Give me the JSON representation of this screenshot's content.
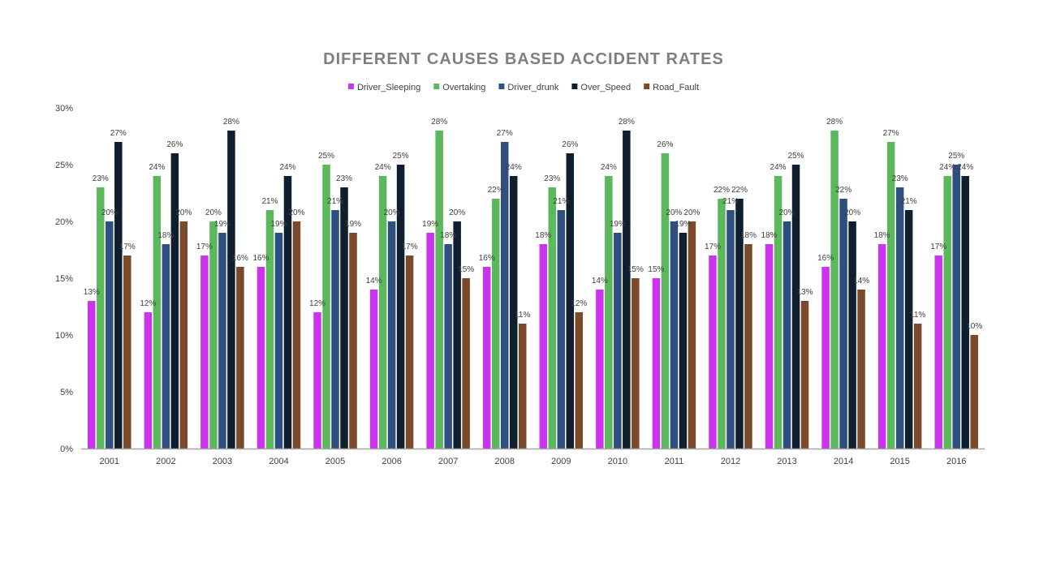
{
  "chart_data": {
    "type": "bar",
    "title": "DIFFERENT CAUSES BASED ACCIDENT RATES",
    "xlabel": "",
    "ylabel": "",
    "ylim": [
      0,
      30
    ],
    "ytick_step": 5,
    "ytick_suffix": "%",
    "data_label_suffix": "%",
    "grid": false,
    "legend_position": "top",
    "categories": [
      "2001",
      "2002",
      "2003",
      "2004",
      "2005",
      "2006",
      "2007",
      "2008",
      "2009",
      "2010",
      "2011",
      "2012",
      "2013",
      "2014",
      "2015",
      "2016"
    ],
    "series": [
      {
        "name": "Driver_Sleeping",
        "color": "#cc33ee",
        "values": [
          13,
          12,
          17,
          16,
          12,
          14,
          19,
          16,
          18,
          14,
          15,
          17,
          18,
          16,
          18,
          17
        ]
      },
      {
        "name": "Overtaking",
        "color": "#5cb85c",
        "values": [
          23,
          24,
          20,
          21,
          25,
          24,
          28,
          22,
          23,
          24,
          26,
          22,
          24,
          28,
          27,
          24
        ]
      },
      {
        "name": "Driver_drunk",
        "color": "#2f4f80",
        "values": [
          20,
          18,
          19,
          19,
          21,
          20,
          18,
          27,
          21,
          19,
          20,
          21,
          20,
          22,
          23,
          25
        ]
      },
      {
        "name": "Over_Speed",
        "color": "#0f1f2e",
        "values": [
          27,
          26,
          28,
          24,
          23,
          25,
          20,
          24,
          26,
          28,
          19,
          22,
          25,
          20,
          21,
          24
        ]
      },
      {
        "name": "Road_Fault",
        "color": "#7a4a2a",
        "values": [
          17,
          20,
          16,
          20,
          19,
          17,
          15,
          11,
          12,
          15,
          20,
          18,
          13,
          14,
          11,
          10
        ]
      }
    ]
  }
}
